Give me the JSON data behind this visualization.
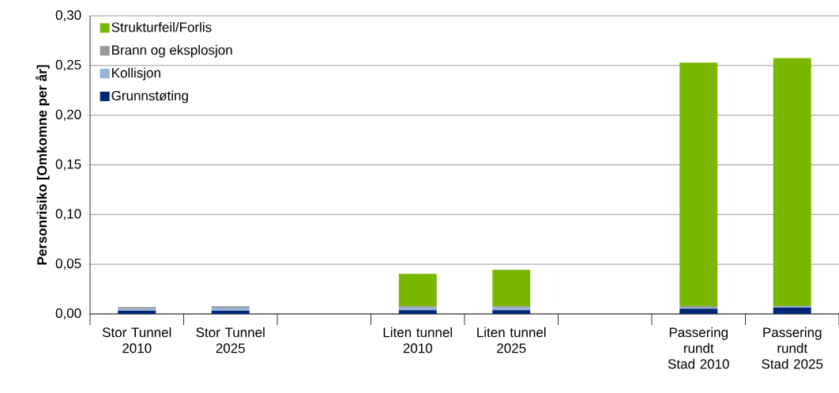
{
  "chart_data": {
    "type": "bar",
    "stacked": true,
    "ylabel": "Personrisiko [Omkomne per år]",
    "categories": [
      "Stor Tunnel 2010",
      "Stor Tunnel 2025",
      null,
      "Liten tunnel 2010",
      "Liten tunnel 2025",
      null,
      "Passering rundt Stad 2010",
      "Passering rundt Stad 2025"
    ],
    "series": [
      {
        "name": "Grunnstøting",
        "color": "#002776",
        "values": [
          0.0032,
          0.0032,
          null,
          0.0037,
          0.0037,
          null,
          0.0053,
          0.0064
        ]
      },
      {
        "name": "Kollisjon",
        "color": "#95b3d7",
        "values": [
          0.0021,
          0.0032,
          null,
          0.0024,
          0.0024,
          null,
          0.0008,
          0.0016
        ]
      },
      {
        "name": "Brann og eksplosjon",
        "color": "#999999",
        "values": [
          0.0016,
          0.0013,
          null,
          0.0016,
          0.0016,
          null,
          0.0018,
          0.0
        ]
      },
      {
        "name": "Strukturfeil/Forlis",
        "color": "#7ab800",
        "values": [
          0.0,
          0.0,
          null,
          0.0326,
          0.0366,
          null,
          0.2449,
          0.2495
        ]
      }
    ],
    "ylim": [
      0,
      0.3
    ],
    "yticks": [
      {
        "value": 0,
        "label": "0,00"
      },
      {
        "value": 0.05,
        "label": "0,05"
      },
      {
        "value": 0.1,
        "label": "0,10"
      },
      {
        "value": 0.15,
        "label": "0,15"
      },
      {
        "value": 0.2,
        "label": "0,20"
      },
      {
        "value": 0.25,
        "label": "0,25"
      },
      {
        "value": 0.3,
        "label": "0,30"
      }
    ],
    "grid": "y",
    "legend": "top left"
  }
}
